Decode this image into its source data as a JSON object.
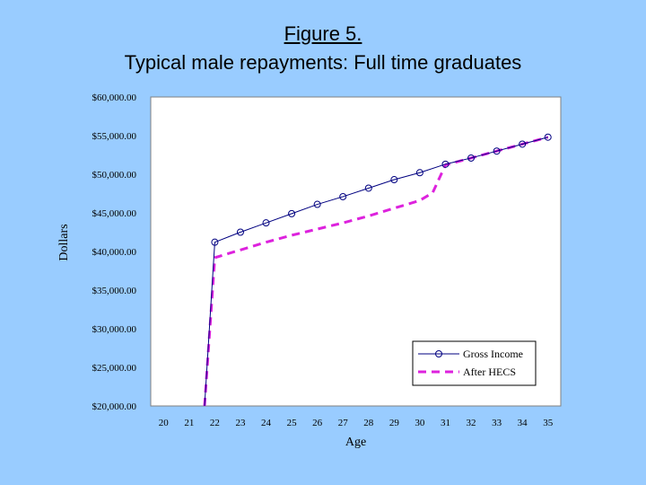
{
  "title": {
    "line1": "Figure 5.",
    "line2": "Typical male repayments: Full time graduates"
  },
  "colors": {
    "background": "#99ccff",
    "plot_area": "#ffffff",
    "gross_income": "#000080",
    "after_hecs": "#dd22dd"
  },
  "chart_data": {
    "type": "line",
    "xlabel": "Age",
    "ylabel": "Dollars",
    "x_ticks": [
      20,
      21,
      22,
      23,
      24,
      25,
      26,
      27,
      28,
      29,
      30,
      31,
      32,
      33,
      34,
      35
    ],
    "y_ticks": [
      20000,
      25000,
      30000,
      35000,
      40000,
      45000,
      50000,
      55000,
      60000
    ],
    "y_tick_labels": [
      "$20,000.00",
      "$25,000.00",
      "$30,000.00",
      "$35,000.00",
      "$40,000.00",
      "$45,000.00",
      "$50,000.00",
      "$55,000.00",
      "$60,000.00"
    ],
    "xlim": [
      19.5,
      35.5
    ],
    "ylim": [
      20000,
      60000
    ],
    "legend_position": "bottom-right",
    "grid": false,
    "series": [
      {
        "name": "Gross Income",
        "style": "solid-circle-markers",
        "x": [
          21.6,
          22,
          23,
          24,
          25,
          26,
          27,
          28,
          29,
          30,
          31,
          32,
          33,
          34,
          35
        ],
        "y": [
          20000,
          41200,
          42500,
          43700,
          44900,
          46100,
          47100,
          48200,
          49300,
          50200,
          51300,
          52100,
          53000,
          53900,
          54800
        ],
        "markers_from_index": 1
      },
      {
        "name": "After HECS",
        "style": "dashed",
        "x": [
          21.6,
          22,
          23,
          24,
          25,
          26,
          27,
          28,
          29,
          30,
          30.5,
          31,
          32,
          33,
          34,
          35
        ],
        "y": [
          20000,
          39200,
          40200,
          41200,
          42100,
          42900,
          43700,
          44600,
          45600,
          46600,
          47600,
          51200,
          52100,
          53000,
          53900,
          54800
        ]
      }
    ]
  }
}
